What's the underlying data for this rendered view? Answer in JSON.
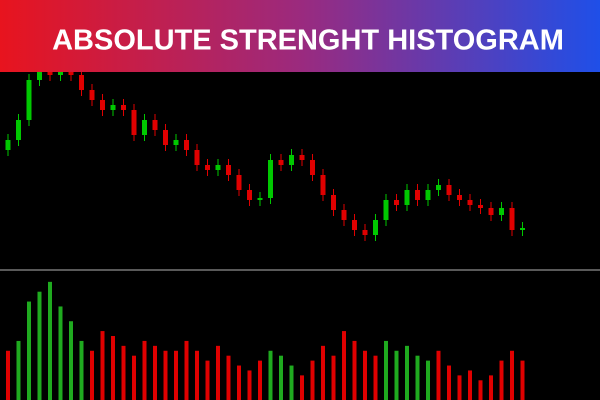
{
  "title": "ABSOLUTE STRENGHT HISTOGRAM",
  "chart_data": [
    {
      "type": "candlestick",
      "ylim": [
        0,
        230
      ],
      "up_color": "#00c800",
      "down_color": "#e00000",
      "open": [
        120,
        130,
        150,
        190,
        200,
        195,
        200,
        195,
        180,
        170,
        160,
        165,
        160,
        135,
        150,
        140,
        125,
        130,
        120,
        105,
        100,
        105,
        95,
        80,
        70,
        72,
        110,
        105,
        115,
        110,
        95,
        75,
        60,
        50,
        40,
        35,
        50,
        70,
        65,
        80,
        70,
        80,
        85,
        75,
        70,
        65,
        62,
        55,
        62,
        40
      ],
      "high": [
        136,
        156,
        196,
        206,
        206,
        206,
        206,
        201,
        186,
        176,
        171,
        171,
        166,
        156,
        156,
        146,
        136,
        136,
        126,
        111,
        111,
        111,
        101,
        86,
        78,
        116,
        116,
        121,
        121,
        116,
        101,
        81,
        66,
        56,
        46,
        56,
        76,
        76,
        86,
        86,
        86,
        91,
        91,
        81,
        76,
        71,
        68,
        68,
        68,
        48
      ],
      "low": [
        114,
        124,
        144,
        184,
        189,
        189,
        189,
        174,
        164,
        154,
        154,
        154,
        129,
        129,
        134,
        119,
        119,
        114,
        99,
        94,
        94,
        89,
        74,
        64,
        64,
        66,
        99,
        99,
        104,
        89,
        69,
        54,
        44,
        34,
        29,
        29,
        44,
        59,
        59,
        64,
        64,
        74,
        69,
        64,
        59,
        56,
        49,
        49,
        34,
        34
      ],
      "close": [
        130,
        150,
        190,
        200,
        195,
        200,
        195,
        180,
        170,
        160,
        165,
        160,
        135,
        150,
        140,
        125,
        130,
        120,
        105,
        100,
        105,
        95,
        80,
        70,
        72,
        110,
        105,
        115,
        110,
        95,
        75,
        60,
        50,
        40,
        35,
        50,
        70,
        65,
        80,
        70,
        80,
        85,
        75,
        70,
        65,
        62,
        55,
        62,
        40,
        42
      ]
    },
    {
      "type": "bar",
      "ylim": [
        0,
        130
      ],
      "series": [
        {
          "color": "#e00000",
          "values": [
            50,
            null,
            null,
            null,
            null,
            null,
            null,
            null,
            50,
            70,
            65,
            55,
            45,
            60,
            55,
            50,
            50,
            60,
            50,
            40,
            55,
            45,
            35,
            30,
            40,
            null,
            null,
            null,
            25,
            40,
            55,
            45,
            70,
            60,
            50,
            45,
            null,
            null,
            null,
            null,
            null,
            50,
            35,
            25,
            30,
            20,
            25,
            40,
            50,
            40
          ]
        },
        {
          "color": "#1faa1f",
          "values": [
            null,
            60,
            100,
            110,
            120,
            95,
            80,
            60,
            null,
            null,
            null,
            null,
            null,
            null,
            null,
            null,
            null,
            null,
            null,
            null,
            null,
            null,
            null,
            null,
            null,
            50,
            45,
            35,
            null,
            null,
            null,
            null,
            null,
            null,
            null,
            null,
            60,
            50,
            55,
            45,
            40,
            null,
            null,
            null,
            null,
            null,
            null,
            null,
            null,
            null
          ]
        }
      ]
    }
  ]
}
